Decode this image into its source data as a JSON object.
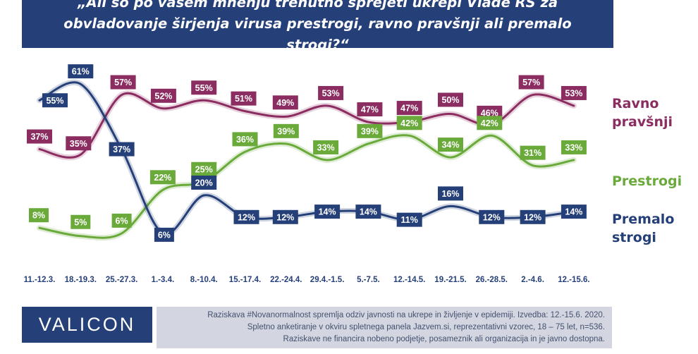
{
  "title": "„Ali so po vašem mnenju trenutno sprejeti ukrepi Vlade RS za obvladovanje širjenja virusa prestrogi, ravno pravšnji ali premalo strogi?“",
  "colors": {
    "header_bg": "#253f78",
    "ravno": "#8b2d61",
    "prestrogi": "#6aaa3a",
    "premalo": "#253f78",
    "footnote_bg": "#d3d6e1"
  },
  "chart_data": {
    "type": "line",
    "title": "„Ali so po vašem mnenju trenutno sprejeti ukrepi Vlade RS za obvladovanje širjenja virusa prestrogi, ravno pravšnji ali premalo strogi?“",
    "categories": [
      "11.-12.3.",
      "18.-19.3.",
      "25.-27.3.",
      "1.-3.4.",
      "8.-10.4.",
      "15.-17.4.",
      "22.-24.4.",
      "29.4.-1.5.",
      "5.-7.5.",
      "12.-14.5.",
      "19.-21.5.",
      "26.-28.5.",
      "2.-4.6.",
      "12.-15.6."
    ],
    "series": [
      {
        "name": "Ravno pravšnji",
        "color": "#8b2d61",
        "values": [
          37,
          35,
          57,
          52,
          55,
          51,
          49,
          53,
          47,
          47,
          50,
          46,
          57,
          53
        ]
      },
      {
        "name": "Prestrogi",
        "color": "#6aaa3a",
        "values": [
          8,
          5,
          6,
          22,
          25,
          36,
          39,
          33,
          39,
          42,
          34,
          42,
          31,
          33
        ]
      },
      {
        "name": "Premalo strogi",
        "color": "#253f78",
        "values": [
          55,
          61,
          37,
          6,
          20,
          12,
          12,
          14,
          14,
          11,
          16,
          12,
          12,
          14
        ]
      }
    ],
    "value_suffix": "%",
    "legend": "right, next to line ends",
    "grid": false
  },
  "legend_labels": {
    "ravno_line1": "Ravno",
    "ravno_line2": "pravšnji",
    "prestrogi": "Prestrogi",
    "premalo_line1": "Premalo",
    "premalo_line2": "strogi"
  },
  "logo_text": "VALICON",
  "footnote": [
    "Raziskava #Novanormalnost spremlja odziv javnosti na ukrepe in življenje v epidemiji. Izvedba: 12.-15.6. 2020.",
    "Spletno anketiranje v okviru spletnega panela Jazvem.si, reprezentativni vzorec, 18 – 75 let, n=536.",
    "Raziskave ne financira nobeno podjetje, posameznik ali organizacija in je javno dostopna."
  ]
}
